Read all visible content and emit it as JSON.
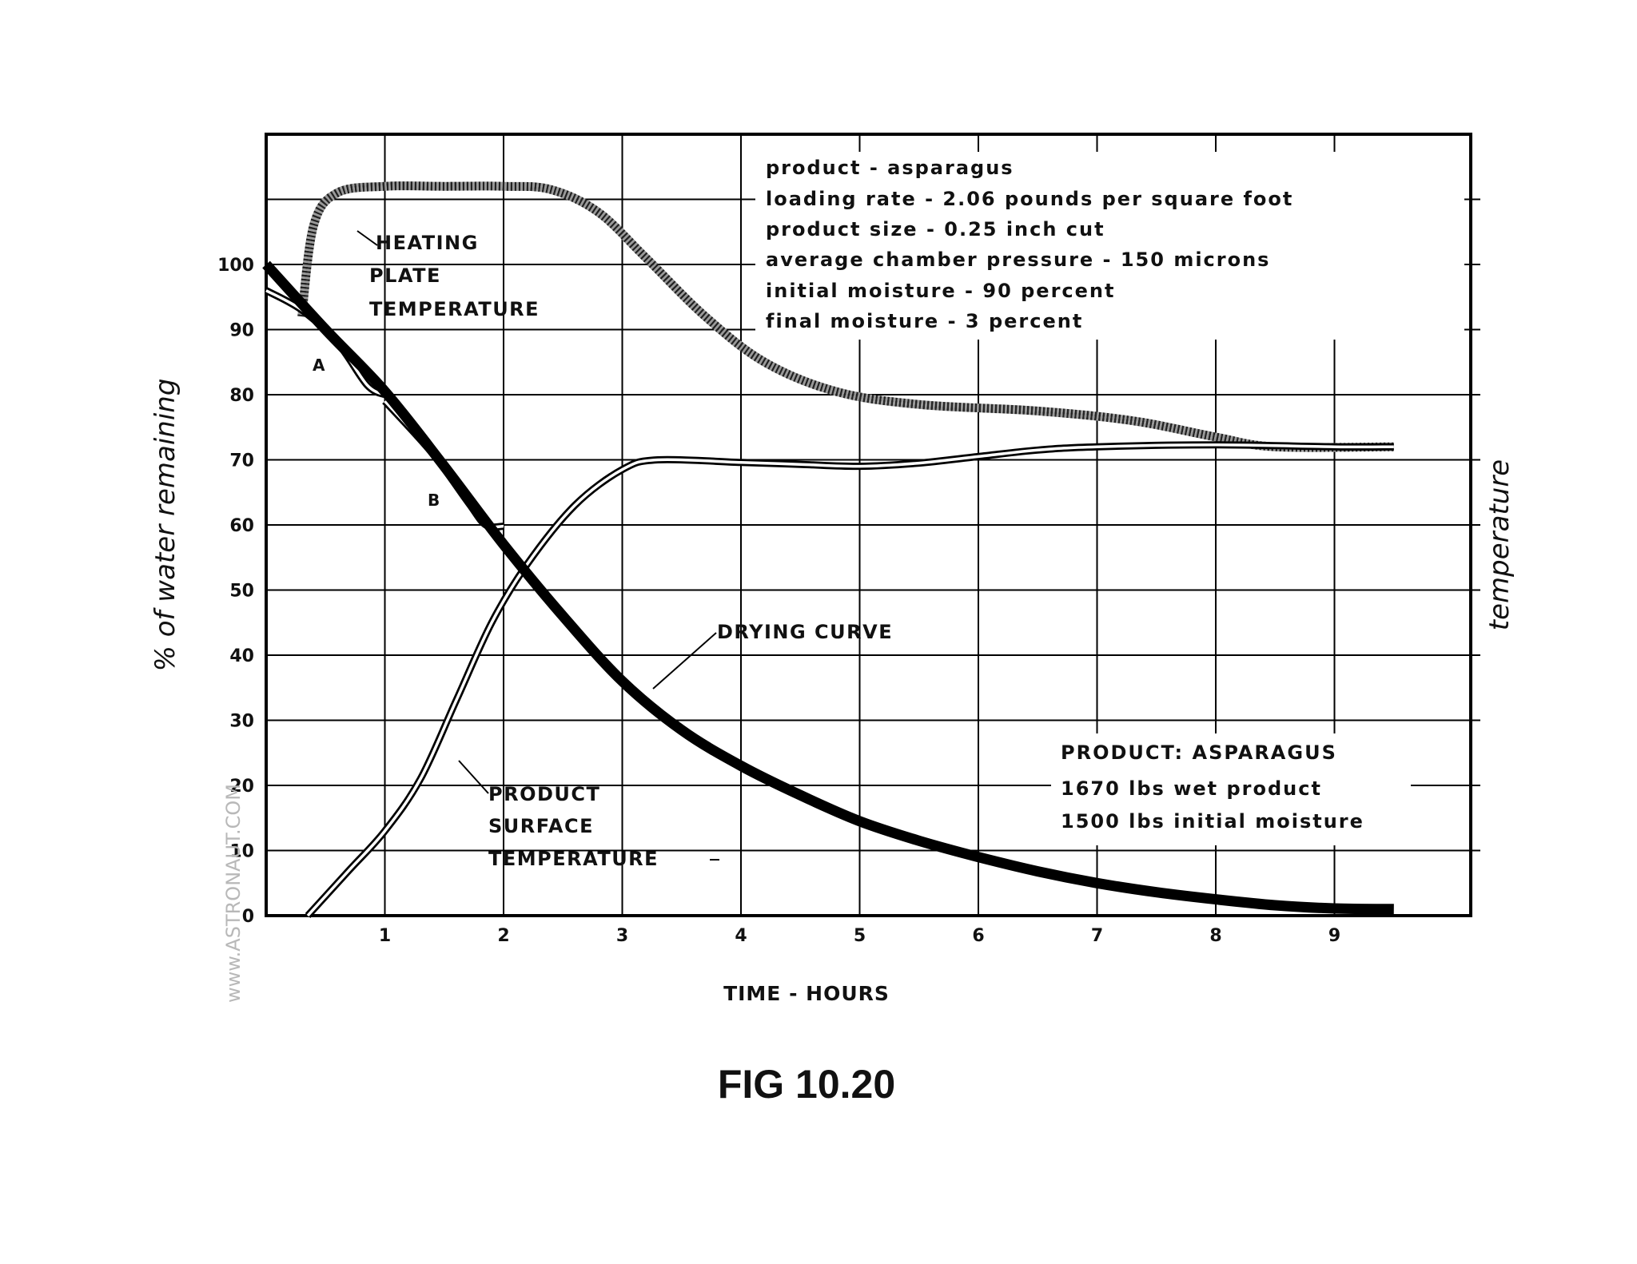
{
  "figure_caption": "FIG 10.20",
  "watermark": "www.ASTRONAUT.COM",
  "chart_data": {
    "type": "line",
    "xlabel": "TIME - HOURS",
    "ylabel": "% of water remaining",
    "y2label": "temperature",
    "xlim": [
      0,
      10
    ],
    "ylim": [
      0,
      120
    ],
    "x_ticks": [
      "1",
      "2",
      "3",
      "4",
      "5",
      "6",
      "7",
      "8",
      "9"
    ],
    "y_ticks": [
      "0",
      "10",
      "20",
      "30",
      "40",
      "50",
      "60",
      "70",
      "80",
      "90",
      "100"
    ],
    "grid": true,
    "info_box": [
      "product - asparagus",
      "loading rate - 2.06 pounds per square foot",
      "product size - 0.25 inch cut",
      "average chamber pressure - 150 microns",
      "initial moisture - 90 percent",
      "final moisture - 3 percent"
    ],
    "product_box": [
      "PRODUCT: ASPARAGUS",
      "1670 lbs wet product",
      "1500 lbs initial moisture"
    ],
    "series": [
      {
        "name": "DRYING CURVE",
        "style": "heavy",
        "color": "#000000",
        "points": [
          [
            0,
            100
          ],
          [
            0.5,
            90
          ],
          [
            1,
            80.5
          ],
          [
            1.5,
            69
          ],
          [
            2,
            57
          ],
          [
            2.5,
            46
          ],
          [
            3,
            36
          ],
          [
            3.5,
            28.5
          ],
          [
            4,
            23
          ],
          [
            4.5,
            18.5
          ],
          [
            5,
            14.5
          ],
          [
            5.5,
            11.5
          ],
          [
            6,
            9
          ],
          [
            6.5,
            6.8
          ],
          [
            7,
            5
          ],
          [
            7.5,
            3.6
          ],
          [
            8,
            2.5
          ],
          [
            8.5,
            1.6
          ],
          [
            9,
            1.1
          ],
          [
            9.5,
            1
          ]
        ]
      },
      {
        "name": "HEATING PLATE TEMPERATURE",
        "style": "hatched",
        "color": "#555555",
        "points": [
          [
            0.3,
            92
          ],
          [
            0.4,
            106
          ],
          [
            0.6,
            111
          ],
          [
            1,
            112
          ],
          [
            1.5,
            112
          ],
          [
            2,
            112
          ],
          [
            2.4,
            111.5
          ],
          [
            2.8,
            108
          ],
          [
            3.2,
            101
          ],
          [
            3.7,
            92
          ],
          [
            4.2,
            85
          ],
          [
            4.8,
            80.5
          ],
          [
            5.5,
            78.5
          ],
          [
            6.5,
            77.5
          ],
          [
            7.3,
            76
          ],
          [
            8,
            73.5
          ],
          [
            8.5,
            72
          ],
          [
            9.5,
            72
          ]
        ]
      },
      {
        "name": "PRODUCT SURFACE TEMPERATURE",
        "style": "double",
        "color": "#000000",
        "points": [
          [
            0.35,
            0
          ],
          [
            0.7,
            7
          ],
          [
            1,
            13
          ],
          [
            1.3,
            21
          ],
          [
            1.6,
            33
          ],
          [
            1.9,
            45
          ],
          [
            2.2,
            54
          ],
          [
            2.6,
            63
          ],
          [
            3,
            68.5
          ],
          [
            3.3,
            70
          ],
          [
            4,
            69.6
          ],
          [
            4.5,
            69.3
          ],
          [
            5,
            69
          ],
          [
            5.5,
            69.5
          ],
          [
            6,
            70.5
          ],
          [
            6.5,
            71.5
          ],
          [
            7,
            72
          ],
          [
            8,
            72.3
          ],
          [
            9,
            72
          ],
          [
            9.5,
            72
          ]
        ]
      },
      {
        "name": "A",
        "style": "double",
        "color": "#000000",
        "points": [
          [
            0,
            96
          ],
          [
            0.3,
            93
          ],
          [
            0.6,
            88
          ],
          [
            0.85,
            81.5
          ],
          [
            1,
            80
          ]
        ]
      },
      {
        "name": "B",
        "style": "double",
        "color": "#000000",
        "points": [
          [
            1,
            79
          ],
          [
            1.4,
            71
          ],
          [
            1.7,
            63.5
          ],
          [
            1.85,
            60
          ],
          [
            2,
            59.8
          ]
        ]
      }
    ]
  }
}
